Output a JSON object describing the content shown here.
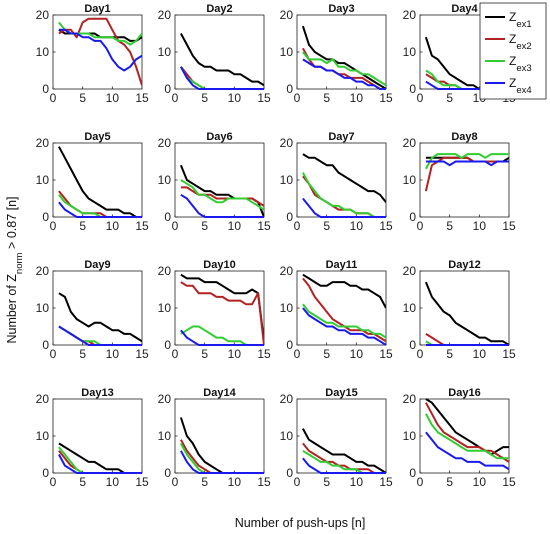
{
  "chart_data": {
    "type": "line",
    "xlabel": "Number of push-ups [n]",
    "ylabel_main": "Number of Z",
    "ylabel_sub": "norm",
    "ylabel_tail": " > 0.87 [n]",
    "xlim": [
      0,
      15
    ],
    "ylim": [
      0,
      20
    ],
    "xticks": [
      0,
      5,
      10,
      15
    ],
    "yticks": [
      0,
      10,
      20
    ],
    "grid": false,
    "legend": {
      "placement": "top-right",
      "entries": [
        {
          "base": "Z",
          "sub": "ex1",
          "color": "#000000"
        },
        {
          "base": "Z",
          "sub": "ex2",
          "color": "#b22222"
        },
        {
          "base": "Z",
          "sub": "ex3",
          "color": "#32cd32"
        },
        {
          "base": "Z",
          "sub": "ex4",
          "color": "#1a1aee"
        }
      ]
    },
    "x": [
      1,
      2,
      3,
      4,
      5,
      6,
      7,
      8,
      9,
      10,
      11,
      12,
      13,
      14,
      15
    ],
    "panels": [
      {
        "title": "Day1",
        "series": [
          [
            16,
            15,
            15,
            15,
            15,
            15,
            15,
            14,
            14,
            14,
            14,
            14,
            13,
            13,
            14
          ],
          [
            15,
            16,
            16,
            14,
            18,
            19,
            19,
            19,
            19,
            16,
            13,
            12,
            10,
            6,
            1
          ],
          [
            18,
            16,
            15,
            15,
            15,
            15,
            14,
            14,
            14,
            14,
            13,
            13,
            12,
            13,
            15
          ],
          [
            16,
            16,
            15,
            15,
            14,
            14,
            13,
            13,
            11,
            8,
            6,
            5,
            6,
            8,
            9
          ]
        ]
      },
      {
        "title": "Day2",
        "series": [
          [
            15,
            12,
            9,
            7,
            6,
            6,
            5,
            5,
            5,
            4,
            4,
            3,
            2,
            2,
            1
          ],
          [
            6,
            4,
            2,
            1,
            0,
            0,
            0,
            0,
            0,
            0,
            0,
            0,
            0,
            0,
            0
          ],
          [
            6,
            3,
            2,
            1,
            0,
            0,
            0,
            0,
            0,
            0,
            0,
            0,
            0,
            0,
            0
          ],
          [
            6,
            3,
            1,
            0,
            0,
            0,
            0,
            0,
            0,
            0,
            0,
            0,
            0,
            0,
            0
          ]
        ]
      },
      {
        "title": "Day3",
        "series": [
          [
            17,
            12,
            10,
            9,
            8,
            8,
            7,
            7,
            6,
            5,
            4,
            3,
            2,
            1,
            0
          ],
          [
            11,
            8,
            6,
            6,
            5,
            5,
            4,
            4,
            3,
            3,
            3,
            2,
            1,
            0,
            0
          ],
          [
            10,
            8,
            8,
            8,
            7,
            8,
            6,
            6,
            5,
            5,
            4,
            4,
            3,
            2,
            1
          ],
          [
            8,
            7,
            6,
            6,
            5,
            5,
            4,
            3,
            3,
            2,
            2,
            1,
            1,
            0,
            0
          ]
        ]
      },
      {
        "title": "Day4",
        "series": [
          [
            14,
            9,
            8,
            6,
            4,
            3,
            2,
            1,
            1,
            0,
            0,
            0,
            0,
            0,
            0
          ],
          [
            4,
            3,
            2,
            2,
            1,
            1,
            0,
            0,
            0,
            0,
            0,
            0,
            0,
            0,
            0
          ],
          [
            5,
            4,
            2,
            1,
            1,
            1,
            0,
            0,
            0,
            0,
            0,
            0,
            0,
            0,
            0
          ],
          [
            2,
            1,
            0,
            0,
            0,
            0,
            0,
            0,
            0,
            0,
            0,
            0,
            0,
            0,
            0
          ]
        ]
      },
      {
        "title": "Day5",
        "series": [
          [
            19,
            16,
            13,
            10,
            7,
            5,
            4,
            3,
            2,
            2,
            2,
            1,
            1,
            0,
            0
          ],
          [
            7,
            5,
            3,
            2,
            1,
            1,
            1,
            1,
            0,
            0,
            0,
            0,
            0,
            0,
            0
          ],
          [
            6,
            4,
            3,
            2,
            1,
            1,
            1,
            0,
            0,
            0,
            0,
            0,
            0,
            0,
            0
          ],
          [
            4,
            2,
            1,
            0,
            0,
            0,
            0,
            0,
            0,
            0,
            0,
            0,
            0,
            0,
            0
          ]
        ]
      },
      {
        "title": "Day6",
        "series": [
          [
            14,
            10,
            9,
            8,
            7,
            7,
            6,
            6,
            6,
            5,
            5,
            5,
            5,
            4,
            0
          ],
          [
            8,
            8,
            7,
            6,
            6,
            6,
            5,
            5,
            5,
            5,
            5,
            5,
            5,
            4,
            3
          ],
          [
            10,
            9,
            8,
            6,
            6,
            5,
            4,
            4,
            5,
            5,
            5,
            5,
            4,
            3,
            2
          ],
          [
            6,
            5,
            3,
            1,
            0,
            0,
            0,
            0,
            0,
            0,
            0,
            0,
            0,
            0,
            0
          ]
        ]
      },
      {
        "title": "Day7",
        "series": [
          [
            17,
            16,
            16,
            15,
            14,
            14,
            12,
            11,
            10,
            9,
            8,
            7,
            7,
            6,
            4
          ],
          [
            11,
            9,
            6,
            5,
            4,
            3,
            2,
            2,
            2,
            1,
            1,
            1,
            0,
            0,
            0
          ],
          [
            12,
            9,
            7,
            5,
            4,
            3,
            3,
            2,
            2,
            1,
            1,
            1,
            0,
            0,
            0
          ],
          [
            5,
            3,
            1,
            0,
            0,
            0,
            0,
            0,
            0,
            0,
            0,
            0,
            0,
            0,
            0
          ]
        ]
      },
      {
        "title": "Day8",
        "series": [
          [
            16,
            16,
            16,
            16,
            16,
            16,
            16,
            16,
            15,
            15,
            15,
            15,
            15,
            15,
            16
          ],
          [
            7,
            14,
            15,
            16,
            16,
            16,
            16,
            16,
            15,
            15,
            15,
            15,
            15,
            15,
            15
          ],
          [
            13,
            16,
            17,
            17,
            17,
            17,
            16,
            17,
            17,
            17,
            16,
            17,
            17,
            17,
            17
          ],
          [
            15,
            15,
            15,
            15,
            14,
            15,
            15,
            15,
            15,
            15,
            15,
            14,
            15,
            15,
            15
          ]
        ]
      },
      {
        "title": "Day9",
        "series": [
          [
            14,
            13,
            9,
            7,
            6,
            5,
            6,
            6,
            5,
            4,
            4,
            3,
            3,
            2,
            1
          ],
          [
            5,
            4,
            3,
            2,
            1,
            1,
            0,
            0,
            0,
            0,
            0,
            0,
            0,
            0,
            0
          ],
          [
            5,
            4,
            3,
            2,
            1,
            1,
            1,
            0,
            0,
            0,
            0,
            0,
            0,
            0,
            0
          ],
          [
            5,
            4,
            3,
            2,
            1,
            0,
            0,
            0,
            0,
            0,
            0,
            0,
            0,
            0,
            0
          ]
        ]
      },
      {
        "title": "Day10",
        "series": [
          [
            19,
            18,
            18,
            18,
            17,
            17,
            17,
            16,
            15,
            14,
            14,
            14,
            15,
            14,
            1
          ],
          [
            17,
            16,
            16,
            14,
            14,
            14,
            13,
            13,
            12,
            12,
            12,
            11,
            11,
            14,
            0
          ],
          [
            3,
            4,
            5,
            5,
            4,
            3,
            2,
            2,
            1,
            1,
            1,
            0,
            0,
            0,
            0
          ],
          [
            4,
            2,
            1,
            0,
            0,
            0,
            0,
            0,
            0,
            0,
            0,
            0,
            0,
            0,
            0
          ]
        ]
      },
      {
        "title": "Day11",
        "series": [
          [
            19,
            18,
            17,
            16,
            16,
            17,
            17,
            17,
            16,
            16,
            15,
            15,
            14,
            13,
            10
          ],
          [
            18,
            16,
            13,
            11,
            9,
            7,
            6,
            5,
            4,
            4,
            4,
            3,
            3,
            2,
            1
          ],
          [
            11,
            9,
            8,
            7,
            6,
            6,
            5,
            5,
            5,
            5,
            4,
            4,
            3,
            3,
            2
          ],
          [
            10,
            8,
            7,
            6,
            5,
            5,
            4,
            4,
            3,
            3,
            3,
            2,
            2,
            1,
            0
          ]
        ]
      },
      {
        "title": "Day12",
        "series": [
          [
            17,
            13,
            11,
            9,
            8,
            6,
            5,
            4,
            3,
            2,
            2,
            1,
            1,
            1,
            0
          ],
          [
            3,
            2,
            1,
            0,
            0,
            0,
            0,
            0,
            0,
            0,
            0,
            0,
            0,
            0,
            0
          ],
          [
            1,
            0,
            0,
            0,
            0,
            0,
            0,
            0,
            0,
            0,
            0,
            0,
            0,
            0,
            0
          ],
          [
            0,
            0,
            0,
            0,
            0,
            0,
            0,
            0,
            0,
            0,
            0,
            0,
            0,
            0,
            0
          ]
        ]
      },
      {
        "title": "Day13",
        "series": [
          [
            8,
            7,
            6,
            5,
            4,
            3,
            3,
            2,
            1,
            1,
            1,
            0,
            0,
            0,
            0
          ],
          [
            6,
            4,
            2,
            1,
            0,
            0,
            0,
            0,
            0,
            0,
            0,
            0,
            0,
            0,
            0
          ],
          [
            7,
            5,
            3,
            1,
            0,
            0,
            0,
            0,
            0,
            0,
            0,
            0,
            0,
            0,
            0
          ],
          [
            5,
            2,
            1,
            0,
            0,
            0,
            0,
            0,
            0,
            0,
            0,
            0,
            0,
            0,
            0
          ]
        ]
      },
      {
        "title": "Day14",
        "series": [
          [
            15,
            10,
            8,
            5,
            3,
            2,
            1,
            0,
            0,
            0,
            0,
            0,
            0,
            0,
            0
          ],
          [
            9,
            6,
            4,
            2,
            1,
            0,
            0,
            0,
            0,
            0,
            0,
            0,
            0,
            0,
            0
          ],
          [
            8,
            5,
            3,
            1,
            0,
            0,
            0,
            0,
            0,
            0,
            0,
            0,
            0,
            0,
            0
          ],
          [
            6,
            3,
            1,
            0,
            0,
            0,
            0,
            0,
            0,
            0,
            0,
            0,
            0,
            0,
            0
          ]
        ]
      },
      {
        "title": "Day15",
        "series": [
          [
            12,
            9,
            8,
            7,
            6,
            5,
            5,
            5,
            4,
            3,
            3,
            2,
            2,
            1,
            0
          ],
          [
            8,
            6,
            5,
            4,
            3,
            3,
            2,
            2,
            1,
            1,
            1,
            1,
            0,
            0,
            0
          ],
          [
            6,
            5,
            4,
            3,
            3,
            2,
            2,
            1,
            1,
            1,
            0,
            0,
            0,
            0,
            0
          ],
          [
            4,
            2,
            1,
            0,
            0,
            0,
            0,
            0,
            0,
            0,
            0,
            0,
            0,
            0,
            0
          ]
        ]
      },
      {
        "title": "Day16",
        "series": [
          [
            20,
            19,
            17,
            15,
            13,
            11,
            10,
            9,
            8,
            7,
            6,
            5,
            6,
            7,
            7
          ],
          [
            19,
            16,
            13,
            11,
            10,
            9,
            8,
            7,
            7,
            7,
            6,
            6,
            5,
            4,
            3
          ],
          [
            16,
            13,
            11,
            10,
            9,
            8,
            7,
            6,
            6,
            6,
            6,
            5,
            4,
            4,
            4
          ],
          [
            11,
            9,
            7,
            6,
            5,
            4,
            4,
            3,
            3,
            3,
            2,
            2,
            2,
            2,
            1
          ]
        ]
      }
    ]
  }
}
